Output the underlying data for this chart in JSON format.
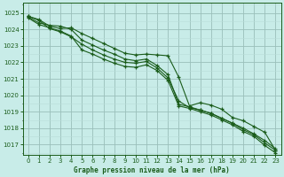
{
  "xlabel": "Graphe pression niveau de la mer (hPa)",
  "xlim": [
    -0.5,
    23.5
  ],
  "ylim": [
    1016.4,
    1025.6
  ],
  "yticks": [
    1017,
    1018,
    1019,
    1020,
    1021,
    1022,
    1023,
    1024,
    1025
  ],
  "xticks": [
    0,
    1,
    2,
    3,
    4,
    5,
    6,
    7,
    8,
    9,
    10,
    11,
    12,
    13,
    14,
    15,
    16,
    17,
    18,
    19,
    20,
    21,
    22,
    23
  ],
  "background_color": "#c8ece8",
  "grid_major_color": "#9abfba",
  "grid_minor_color": "#b8ddd8",
  "line_color": "#1a5c1a",
  "series": [
    [
      1024.8,
      1024.6,
      1024.2,
      1024.05,
      1024.1,
      1023.75,
      1023.45,
      1023.15,
      1022.85,
      1022.55,
      1022.45,
      1022.5,
      1022.45,
      1022.4,
      1021.1,
      1019.35,
      1019.55,
      1019.4,
      1019.15,
      1018.65,
      1018.45,
      1018.1,
      1017.75,
      1016.65
    ],
    [
      1024.8,
      1024.55,
      1024.05,
      1023.85,
      1023.55,
      1023.1,
      1022.75,
      1022.45,
      1022.2,
      1022.0,
      1021.95,
      1022.05,
      1021.65,
      1021.05,
      1019.65,
      1019.25,
      1019.1,
      1018.9,
      1018.6,
      1018.3,
      1017.9,
      1017.6,
      1017.1,
      1016.65
    ],
    [
      1024.75,
      1024.4,
      1024.25,
      1024.2,
      1024.0,
      1023.35,
      1023.05,
      1022.75,
      1022.5,
      1022.2,
      1022.1,
      1022.2,
      1021.8,
      1021.25,
      1019.45,
      1019.3,
      1019.1,
      1018.9,
      1018.6,
      1018.3,
      1018.0,
      1017.65,
      1017.25,
      1016.75
    ],
    [
      1024.7,
      1024.3,
      1024.1,
      1023.9,
      1023.6,
      1022.75,
      1022.5,
      1022.2,
      1021.95,
      1021.75,
      1021.7,
      1021.85,
      1021.5,
      1020.9,
      1019.35,
      1019.2,
      1019.0,
      1018.8,
      1018.5,
      1018.2,
      1017.8,
      1017.5,
      1016.95,
      1016.5
    ]
  ]
}
